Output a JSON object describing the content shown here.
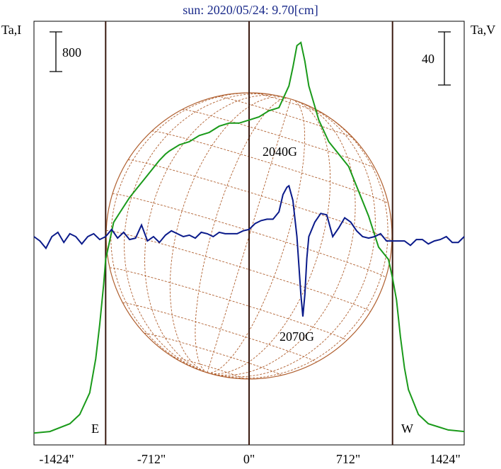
{
  "title": "sun: 2020/05/24: 9.70[cm]",
  "left_axis_label": "Ta,I",
  "right_axis_label": "Ta,V",
  "scale_left_label": "800",
  "scale_right_label": "40",
  "limb_east_label": "E",
  "limb_west_label": "W",
  "colors": {
    "intensity": "#1a9a1a",
    "polarization": "#0a1a8a",
    "grid": "#b06030",
    "frame": "#000000",
    "limb_lines": "#3a1a10",
    "title": "#1a2a8a"
  },
  "chart_data": {
    "type": "line",
    "title": "sun: 2020/05/24: 9.70[cm]",
    "xlabel": "",
    "x_tick_labels": [
      "-1424\"",
      "-712\"",
      "0\"",
      "712\"",
      "1424\""
    ],
    "x_ticks": [
      -1424,
      -712,
      0,
      712,
      1424
    ],
    "xlim": [
      -1080,
      1080
    ],
    "vertical_lines": [
      -720,
      0,
      720
    ],
    "annotations": [
      {
        "text": "2040G",
        "x": 180,
        "level": 0.55
      },
      {
        "text": "2070G",
        "x": 280,
        "level": 0.28
      }
    ],
    "series": [
      {
        "id": "intensity",
        "color": "#1a9a1a",
        "axis": "left",
        "x": [
          -1080,
          -1000,
          -900,
          -850,
          -800,
          -770,
          -750,
          -730,
          -720,
          -700,
          -680,
          -650,
          -600,
          -550,
          -500,
          -450,
          -420,
          -400,
          -350,
          -300,
          -250,
          -200,
          -150,
          -100,
          -50,
          0,
          50,
          100,
          150,
          200,
          220,
          240,
          260,
          280,
          300,
          350,
          400,
          450,
          500,
          550,
          600,
          650,
          700,
          720,
          740,
          760,
          780,
          800,
          850,
          900,
          950,
          1000,
          1080
        ],
        "y": [
          20,
          25,
          50,
          80,
          150,
          260,
          370,
          500,
          580,
          640,
          700,
          730,
          780,
          820,
          860,
          900,
          920,
          930,
          950,
          960,
          980,
          990,
          1010,
          1020,
          1020,
          1030,
          1040,
          1060,
          1070,
          1140,
          1200,
          1270,
          1280,
          1220,
          1140,
          1030,
          960,
          920,
          880,
          800,
          720,
          620,
          580,
          520,
          450,
          330,
          230,
          160,
          80,
          50,
          40,
          30,
          25
        ]
      },
      {
        "id": "polarization",
        "color": "#0a1a8a",
        "axis": "right",
        "x": [
          -1080,
          -1050,
          -1020,
          -990,
          -960,
          -930,
          -900,
          -870,
          -840,
          -810,
          -780,
          -750,
          -720,
          -690,
          -660,
          -630,
          -600,
          -570,
          -540,
          -510,
          -480,
          -450,
          -420,
          -390,
          -360,
          -330,
          -300,
          -270,
          -240,
          -210,
          -180,
          -150,
          -120,
          -90,
          -60,
          -30,
          0,
          30,
          60,
          90,
          120,
          150,
          170,
          190,
          200,
          220,
          240,
          260,
          270,
          280,
          290,
          300,
          330,
          360,
          390,
          420,
          450,
          480,
          510,
          540,
          570,
          600,
          630,
          660,
          690,
          720,
          750,
          780,
          810,
          840,
          870,
          900,
          930,
          960,
          990,
          1020,
          1050,
          1080
        ],
        "y": [
          0,
          -3,
          -8,
          0,
          3,
          -4,
          2,
          0,
          -5,
          0,
          2,
          -2,
          0,
          5,
          -1,
          3,
          -2,
          -1,
          8,
          -3,
          0,
          -4,
          1,
          4,
          2,
          0,
          1,
          -1,
          3,
          2,
          0,
          3,
          2,
          2,
          2,
          4,
          5,
          9,
          11,
          12,
          12,
          17,
          29,
          34,
          35,
          25,
          0,
          -40,
          -55,
          -40,
          -15,
          0,
          10,
          16,
          15,
          0,
          6,
          13,
          10,
          4,
          0,
          -1,
          0,
          2,
          -3,
          -3,
          -3,
          -3,
          -6,
          -2,
          -2,
          -5,
          -3,
          -2,
          0,
          -4,
          -4,
          0
        ]
      }
    ]
  }
}
